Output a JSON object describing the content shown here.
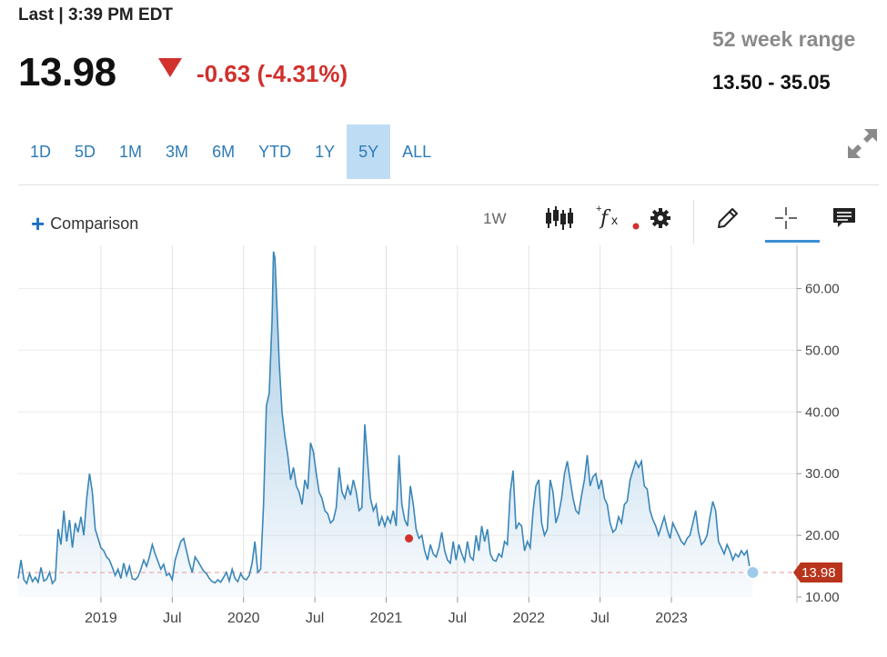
{
  "header": {
    "last_label": "Last | 3:39 PM EDT",
    "price": "13.98",
    "change": "-0.63 (-4.31%)",
    "change_direction": "down",
    "range_label": "52 week range",
    "range_value": "13.50 - 35.05",
    "down_color": "#d0312d"
  },
  "range_tabs": [
    {
      "label": "1D",
      "active": false
    },
    {
      "label": "5D",
      "active": false
    },
    {
      "label": "1M",
      "active": false
    },
    {
      "label": "3M",
      "active": false
    },
    {
      "label": "6M",
      "active": false
    },
    {
      "label": "YTD",
      "active": false
    },
    {
      "label": "1Y",
      "active": false
    },
    {
      "label": "5Y",
      "active": true
    },
    {
      "label": "ALL",
      "active": false
    }
  ],
  "toolbar": {
    "comparison_label": "Comparison",
    "interval_label": "1W",
    "icons": [
      "candlestick-icon",
      "fx-indicator-icon",
      "gear-icon",
      "pencil-icon",
      "crosshair-icon",
      "comment-icon",
      "expand-icon"
    ],
    "active_tool": "crosshair-icon"
  },
  "chart_data": {
    "type": "area",
    "ylim": [
      10,
      67
    ],
    "y_ticks": [
      "10.00",
      "20.00",
      "30.00",
      "40.00",
      "50.00",
      "60.00"
    ],
    "x_ticks": [
      "2019",
      "Jul",
      "2020",
      "Jul",
      "2021",
      "Jul",
      "2022",
      "Jul",
      "2023"
    ],
    "x_tick_values": [
      2019.0,
      2019.5,
      2020.0,
      2020.5,
      2021.0,
      2021.5,
      2022.0,
      2022.5,
      2023.0
    ],
    "xlim": [
      2018.42,
      2023.88
    ],
    "last_value": 13.98,
    "last_value_label": "13.98",
    "line_color": "#3a86b8",
    "marker_color": "#d0312d",
    "event_marker": {
      "x": 2021.16,
      "y": 19.5
    },
    "points": [
      [
        2018.42,
        13.0
      ],
      [
        2018.44,
        16.0
      ],
      [
        2018.46,
        12.8
      ],
      [
        2018.48,
        12.2
      ],
      [
        2018.5,
        13.8
      ],
      [
        2018.52,
        12.5
      ],
      [
        2018.54,
        13.2
      ],
      [
        2018.56,
        12.4
      ],
      [
        2018.58,
        14.8
      ],
      [
        2018.6,
        12.6
      ],
      [
        2018.62,
        12.9
      ],
      [
        2018.64,
        14.0
      ],
      [
        2018.66,
        12.2
      ],
      [
        2018.68,
        12.8
      ],
      [
        2018.7,
        21.0
      ],
      [
        2018.72,
        18.5
      ],
      [
        2018.74,
        24.0
      ],
      [
        2018.76,
        19.0
      ],
      [
        2018.78,
        22.5
      ],
      [
        2018.8,
        18.0
      ],
      [
        2018.82,
        22.0
      ],
      [
        2018.84,
        20.5
      ],
      [
        2018.86,
        23.0
      ],
      [
        2018.88,
        20.0
      ],
      [
        2018.9,
        26.0
      ],
      [
        2018.92,
        30.0
      ],
      [
        2018.94,
        27.0
      ],
      [
        2018.96,
        21.0
      ],
      [
        2018.98,
        19.5
      ],
      [
        2019.0,
        18.0
      ],
      [
        2019.02,
        17.5
      ],
      [
        2019.04,
        16.5
      ],
      [
        2019.06,
        16.0
      ],
      [
        2019.08,
        14.8
      ],
      [
        2019.1,
        13.5
      ],
      [
        2019.12,
        14.5
      ],
      [
        2019.14,
        13.0
      ],
      [
        2019.16,
        15.5
      ],
      [
        2019.18,
        13.5
      ],
      [
        2019.2,
        15.0
      ],
      [
        2019.22,
        13.0
      ],
      [
        2019.24,
        12.8
      ],
      [
        2019.26,
        13.3
      ],
      [
        2019.28,
        14.5
      ],
      [
        2019.3,
        16.0
      ],
      [
        2019.32,
        15.0
      ],
      [
        2019.34,
        16.5
      ],
      [
        2019.36,
        18.5
      ],
      [
        2019.38,
        17.0
      ],
      [
        2019.4,
        15.8
      ],
      [
        2019.42,
        14.5
      ],
      [
        2019.44,
        15.3
      ],
      [
        2019.46,
        13.5
      ],
      [
        2019.48,
        13.8
      ],
      [
        2019.5,
        12.8
      ],
      [
        2019.52,
        16.0
      ],
      [
        2019.54,
        17.5
      ],
      [
        2019.56,
        19.0
      ],
      [
        2019.58,
        19.5
      ],
      [
        2019.6,
        17.5
      ],
      [
        2019.62,
        15.5
      ],
      [
        2019.64,
        14.0
      ],
      [
        2019.66,
        16.5
      ],
      [
        2019.68,
        15.8
      ],
      [
        2019.7,
        15.0
      ],
      [
        2019.72,
        14.2
      ],
      [
        2019.74,
        13.8
      ],
      [
        2019.76,
        13.0
      ],
      [
        2019.78,
        12.5
      ],
      [
        2019.8,
        12.3
      ],
      [
        2019.82,
        12.8
      ],
      [
        2019.84,
        12.4
      ],
      [
        2019.86,
        13.2
      ],
      [
        2019.88,
        14.0
      ],
      [
        2019.9,
        12.6
      ],
      [
        2019.92,
        14.5
      ],
      [
        2019.94,
        13.0
      ],
      [
        2019.96,
        12.5
      ],
      [
        2019.98,
        13.8
      ],
      [
        2020.0,
        13.0
      ],
      [
        2020.02,
        12.8
      ],
      [
        2020.04,
        13.5
      ],
      [
        2020.06,
        15.5
      ],
      [
        2020.08,
        19.0
      ],
      [
        2020.1,
        14.0
      ],
      [
        2020.12,
        14.5
      ],
      [
        2020.14,
        25.0
      ],
      [
        2020.16,
        41.0
      ],
      [
        2020.18,
        43.0
      ],
      [
        2020.2,
        55.0
      ],
      [
        2020.21,
        66.0
      ],
      [
        2020.22,
        65.0
      ],
      [
        2020.24,
        54.0
      ],
      [
        2020.25,
        48.0
      ],
      [
        2020.27,
        40.0
      ],
      [
        2020.29,
        36.0
      ],
      [
        2020.31,
        33.0
      ],
      [
        2020.33,
        29.0
      ],
      [
        2020.35,
        31.0
      ],
      [
        2020.37,
        28.0
      ],
      [
        2020.39,
        27.0
      ],
      [
        2020.41,
        25.0
      ],
      [
        2020.43,
        29.0
      ],
      [
        2020.45,
        27.5
      ],
      [
        2020.47,
        35.0
      ],
      [
        2020.49,
        33.5
      ],
      [
        2020.51,
        30.0
      ],
      [
        2020.53,
        27.0
      ],
      [
        2020.55,
        26.0
      ],
      [
        2020.57,
        24.0
      ],
      [
        2020.59,
        23.5
      ],
      [
        2020.61,
        22.0
      ],
      [
        2020.63,
        22.5
      ],
      [
        2020.65,
        24.5
      ],
      [
        2020.67,
        31.0
      ],
      [
        2020.69,
        27.0
      ],
      [
        2020.71,
        26.0
      ],
      [
        2020.73,
        28.0
      ],
      [
        2020.75,
        26.5
      ],
      [
        2020.77,
        29.0
      ],
      [
        2020.79,
        27.0
      ],
      [
        2020.81,
        24.0
      ],
      [
        2020.83,
        24.5
      ],
      [
        2020.85,
        38.0
      ],
      [
        2020.87,
        32.0
      ],
      [
        2020.89,
        26.0
      ],
      [
        2020.91,
        24.0
      ],
      [
        2020.93,
        25.0
      ],
      [
        2020.95,
        21.5
      ],
      [
        2020.97,
        23.0
      ],
      [
        2020.99,
        21.5
      ],
      [
        2021.01,
        23.0
      ],
      [
        2021.03,
        22.0
      ],
      [
        2021.05,
        24.0
      ],
      [
        2021.07,
        21.5
      ],
      [
        2021.09,
        33.0
      ],
      [
        2021.11,
        25.0
      ],
      [
        2021.13,
        22.5
      ],
      [
        2021.15,
        21.5
      ],
      [
        2021.17,
        28.0
      ],
      [
        2021.19,
        25.0
      ],
      [
        2021.21,
        21.0
      ],
      [
        2021.23,
        19.5
      ],
      [
        2021.25,
        20.0
      ],
      [
        2021.27,
        17.5
      ],
      [
        2021.29,
        16.0
      ],
      [
        2021.31,
        18.5
      ],
      [
        2021.33,
        17.0
      ],
      [
        2021.35,
        16.5
      ],
      [
        2021.37,
        18.0
      ],
      [
        2021.39,
        20.5
      ],
      [
        2021.41,
        17.5
      ],
      [
        2021.43,
        16.0
      ],
      [
        2021.45,
        15.5
      ],
      [
        2021.47,
        19.0
      ],
      [
        2021.49,
        16.0
      ],
      [
        2021.51,
        18.5
      ],
      [
        2021.53,
        17.0
      ],
      [
        2021.55,
        15.8
      ],
      [
        2021.57,
        19.0
      ],
      [
        2021.59,
        16.5
      ],
      [
        2021.61,
        16.0
      ],
      [
        2021.63,
        20.0
      ],
      [
        2021.65,
        17.5
      ],
      [
        2021.67,
        21.5
      ],
      [
        2021.69,
        19.0
      ],
      [
        2021.71,
        21.0
      ],
      [
        2021.73,
        17.0
      ],
      [
        2021.75,
        16.0
      ],
      [
        2021.77,
        15.8
      ],
      [
        2021.79,
        17.0
      ],
      [
        2021.81,
        16.5
      ],
      [
        2021.83,
        19.0
      ],
      [
        2021.85,
        18.5
      ],
      [
        2021.87,
        27.0
      ],
      [
        2021.89,
        30.5
      ],
      [
        2021.91,
        21.0
      ],
      [
        2021.93,
        22.0
      ],
      [
        2021.95,
        21.5
      ],
      [
        2021.97,
        17.5
      ],
      [
        2021.99,
        19.0
      ],
      [
        2022.01,
        18.0
      ],
      [
        2022.03,
        24.0
      ],
      [
        2022.05,
        28.0
      ],
      [
        2022.07,
        29.0
      ],
      [
        2022.09,
        22.0
      ],
      [
        2022.11,
        20.0
      ],
      [
        2022.13,
        21.0
      ],
      [
        2022.15,
        29.0
      ],
      [
        2022.17,
        27.0
      ],
      [
        2022.19,
        22.0
      ],
      [
        2022.21,
        23.5
      ],
      [
        2022.23,
        26.0
      ],
      [
        2022.25,
        30.0
      ],
      [
        2022.27,
        32.0
      ],
      [
        2022.29,
        29.0
      ],
      [
        2022.31,
        26.0
      ],
      [
        2022.33,
        24.0
      ],
      [
        2022.35,
        23.5
      ],
      [
        2022.37,
        26.5
      ],
      [
        2022.39,
        29.0
      ],
      [
        2022.41,
        33.0
      ],
      [
        2022.43,
        28.0
      ],
      [
        2022.45,
        29.5
      ],
      [
        2022.47,
        30.0
      ],
      [
        2022.49,
        27.5
      ],
      [
        2022.51,
        29.0
      ],
      [
        2022.53,
        26.0
      ],
      [
        2022.55,
        25.0
      ],
      [
        2022.57,
        22.0
      ],
      [
        2022.59,
        20.5
      ],
      [
        2022.61,
        21.0
      ],
      [
        2022.63,
        23.0
      ],
      [
        2022.65,
        22.0
      ],
      [
        2022.67,
        25.0
      ],
      [
        2022.69,
        25.5
      ],
      [
        2022.71,
        29.0
      ],
      [
        2022.73,
        30.5
      ],
      [
        2022.75,
        32.0
      ],
      [
        2022.77,
        31.0
      ],
      [
        2022.79,
        32.0
      ],
      [
        2022.81,
        28.0
      ],
      [
        2022.83,
        27.5
      ],
      [
        2022.85,
        24.0
      ],
      [
        2022.87,
        22.5
      ],
      [
        2022.89,
        21.5
      ],
      [
        2022.91,
        20.0
      ],
      [
        2022.93,
        21.5
      ],
      [
        2022.95,
        23.0
      ],
      [
        2022.97,
        21.0
      ],
      [
        2022.99,
        19.5
      ],
      [
        2023.01,
        22.0
      ],
      [
        2023.03,
        21.0
      ],
      [
        2023.05,
        20.0
      ],
      [
        2023.07,
        19.0
      ],
      [
        2023.09,
        18.5
      ],
      [
        2023.11,
        19.5
      ],
      [
        2023.13,
        20.0
      ],
      [
        2023.15,
        22.0
      ],
      [
        2023.17,
        24.0
      ],
      [
        2023.19,
        20.5
      ],
      [
        2023.21,
        18.5
      ],
      [
        2023.23,
        19.0
      ],
      [
        2023.25,
        20.0
      ],
      [
        2023.27,
        23.0
      ],
      [
        2023.29,
        25.5
      ],
      [
        2023.31,
        24.0
      ],
      [
        2023.33,
        19.0
      ],
      [
        2023.35,
        18.0
      ],
      [
        2023.37,
        17.0
      ],
      [
        2023.39,
        18.5
      ],
      [
        2023.41,
        17.5
      ],
      [
        2023.43,
        16.0
      ],
      [
        2023.45,
        17.0
      ],
      [
        2023.47,
        16.5
      ],
      [
        2023.49,
        17.5
      ],
      [
        2023.51,
        16.8
      ],
      [
        2023.53,
        17.5
      ],
      [
        2023.55,
        14.5
      ],
      [
        2023.57,
        13.98
      ]
    ]
  }
}
